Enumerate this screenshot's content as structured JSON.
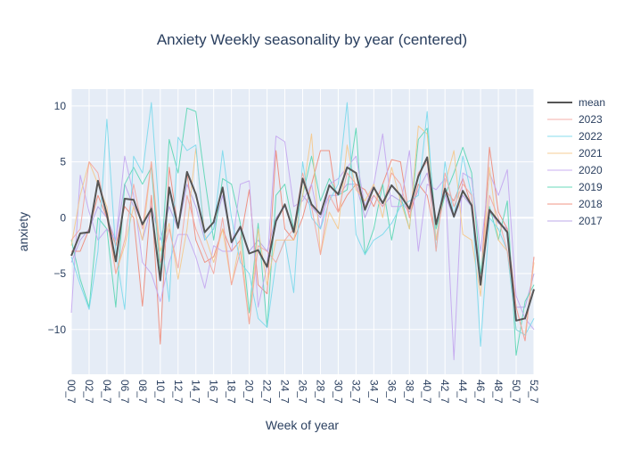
{
  "chart_data": {
    "type": "line",
    "title": "Anxiety Weekly seasonality by year (centered)",
    "xlabel": "Week of year",
    "ylabel": "anxiety",
    "x": [
      "00_7",
      "01_7",
      "02_7",
      "03_7",
      "04_7",
      "05_7",
      "06_7",
      "07_7",
      "08_7",
      "09_7",
      "10_7",
      "11_7",
      "12_7",
      "13_7",
      "14_7",
      "15_7",
      "16_7",
      "17_7",
      "18_7",
      "19_7",
      "20_7",
      "21_7",
      "22_7",
      "23_7",
      "24_7",
      "25_7",
      "26_7",
      "27_7",
      "28_7",
      "29_7",
      "30_7",
      "31_7",
      "32_7",
      "33_7",
      "34_7",
      "35_7",
      "36_7",
      "37_7",
      "38_7",
      "39_7",
      "40_7",
      "41_7",
      "42_7",
      "43_7",
      "44_7",
      "45_7",
      "46_7",
      "47_7",
      "48_7",
      "49_7",
      "50_7",
      "51_7",
      "52_7"
    ],
    "xtick_labels": [
      "00_7",
      "02_7",
      "04_7",
      "06_7",
      "08_7",
      "10_7",
      "12_7",
      "14_7",
      "16_7",
      "18_7",
      "20_7",
      "22_7",
      "24_7",
      "26_7",
      "28_7",
      "30_7",
      "32_7",
      "34_7",
      "36_7",
      "38_7",
      "40_7",
      "42_7",
      "44_7",
      "46_7",
      "48_7",
      "50_7",
      "52_7"
    ],
    "ylim": [
      -14,
      11.5
    ],
    "yticks": [
      -10,
      -5,
      0,
      5,
      10
    ],
    "grid": true,
    "legend_position": "right",
    "series": [
      {
        "name": "mean",
        "color": "#555555",
        "width": 2,
        "opacity": 1,
        "values": [
          -3.4,
          -1.4,
          -1.3,
          3.3,
          0.3,
          -3.9,
          1.7,
          1.6,
          -0.6,
          0.8,
          -5.6,
          2.7,
          -0.9,
          4.1,
          2.1,
          -1.3,
          -0.4,
          2.7,
          -2.2,
          -0.8,
          -3.2,
          -2.9,
          -4.4,
          -0.3,
          1.2,
          -1.3,
          3.5,
          1.2,
          0.3,
          2.9,
          2.1,
          4.5,
          4.0,
          0.7,
          2.7,
          1.3,
          2.9,
          2.0,
          0.8,
          3.7,
          5.4,
          -0.6,
          2.6,
          0.1,
          2.4,
          1.1,
          -6.0,
          0.7,
          -0.3,
          -1.3,
          -9.2,
          -9.0,
          -6.4
        ]
      },
      {
        "name": "2023",
        "color": "#f4a6a0",
        "width": 1,
        "opacity": 0.9,
        "values": [
          -2.0,
          -1.0,
          5.0,
          4.0,
          0.0,
          -5.0,
          -2.0,
          3.0,
          -1.0,
          5.0,
          -4.0,
          -1.0,
          -4.5,
          2.0,
          -1.0,
          -3.0,
          -5.0,
          0.0,
          -6.0,
          -3.0,
          -9.5,
          -2.5,
          -3.0,
          -4.0,
          -2.0,
          -1.0,
          4.0,
          1.0,
          -3.3,
          2.0,
          0.5,
          4.0,
          3.0,
          1.0,
          2.0,
          1.0,
          4.0,
          3.0,
          0.0,
          4.0,
          5.0,
          -3.0,
          4.0,
          1.0,
          3.0,
          2.0,
          -6.0,
          2.0,
          0.0,
          -3.0,
          -8.0,
          -11.0,
          -3.5
        ]
      },
      {
        "name": "2022",
        "color": "#7ad9ec",
        "width": 1,
        "opacity": 0.9,
        "values": [
          -3.5,
          -6.0,
          -8.2,
          -3.0,
          8.8,
          -3.0,
          -8.2,
          5.5,
          4.0,
          10.3,
          -1.0,
          -7.5,
          7.2,
          6.0,
          6.5,
          -2.0,
          -1.0,
          6.0,
          0.0,
          -4.0,
          -5.0,
          -9.0,
          -9.8,
          -4.0,
          -2.0,
          -6.7,
          5.0,
          0.0,
          -1.0,
          1.5,
          3.0,
          10.3,
          -1.5,
          -3.3,
          -2.0,
          -1.5,
          -0.5,
          1.0,
          1.5,
          2.0,
          9.5,
          -3.0,
          5.0,
          0.0,
          5.5,
          2.0,
          -11.5,
          0.0,
          -1.0,
          -3.0,
          -10.0,
          -10.5,
          -9.0
        ]
      },
      {
        "name": "2021",
        "color": "#f5c88a",
        "width": 1,
        "opacity": 0.9,
        "values": [
          -2.5,
          2.0,
          5.0,
          3.0,
          1.0,
          -5.0,
          -2.5,
          1.0,
          -2.0,
          5.0,
          -3.0,
          -0.5,
          -5.5,
          -1.0,
          6.2,
          -1.5,
          -4.0,
          -1.0,
          -6.0,
          -2.0,
          -9.5,
          -1.0,
          -6.0,
          -2.0,
          -2.0,
          -2.0,
          2.0,
          7.5,
          -3.3,
          0.5,
          -1.0,
          6.5,
          2.5,
          1.5,
          3.0,
          0.0,
          4.5,
          1.5,
          -1.0,
          8.2,
          7.5,
          -2.0,
          3.0,
          6.0,
          -1.5,
          -2.0,
          -7.0,
          4.5,
          -2.0,
          -3.0,
          -10.0,
          -10.5,
          -4.0
        ]
      },
      {
        "name": "2020",
        "color": "#c3a6ef",
        "width": 1,
        "opacity": 0.9,
        "values": [
          -8.5,
          3.8,
          0.5,
          -2.0,
          -1.0,
          -2.0,
          5.5,
          2.0,
          -4.0,
          -5.0,
          -7.5,
          -4.0,
          -1.5,
          -1.5,
          -3.5,
          -6.3,
          -2.5,
          -3.0,
          -3.0,
          3.0,
          3.3,
          -8.0,
          -4.3,
          7.3,
          6.8,
          1.0,
          1.5,
          3.0,
          -1.0,
          3.0,
          3.5,
          4.5,
          5.5,
          1.0,
          3.0,
          7.5,
          1.0,
          1.0,
          6.0,
          -3.0,
          3.0,
          2.5,
          3.5,
          -12.7,
          4.0,
          3.5,
          -3.0,
          4.0,
          2.0,
          4.3,
          -7.0,
          -9.0,
          -10.0
        ]
      },
      {
        "name": "2019",
        "color": "#5ad6b4",
        "width": 1,
        "opacity": 0.9,
        "values": [
          -2.0,
          -5.5,
          -8.0,
          0.0,
          -1.0,
          -8.0,
          3.0,
          4.5,
          3.0,
          4.5,
          -5.0,
          7.0,
          4.0,
          9.8,
          9.5,
          3.5,
          -2.0,
          3.5,
          3.0,
          -0.5,
          -8.5,
          -0.5,
          -9.8,
          2.0,
          3.0,
          -1.0,
          2.0,
          5.5,
          1.5,
          3.5,
          2.0,
          2.5,
          8.0,
          -3.3,
          -1.0,
          3.0,
          -2.0,
          2.0,
          -1.0,
          7.0,
          8.0,
          -1.0,
          2.0,
          4.0,
          6.3,
          4.0,
          -5.0,
          1.0,
          -2.0,
          1.5,
          -12.3,
          -7.5,
          -6.0
        ]
      },
      {
        "name": "2018",
        "color": "#ee8a78",
        "width": 1,
        "opacity": 0.9,
        "values": [
          -3.0,
          -3.0,
          -1.0,
          2.0,
          0.0,
          -2.5,
          1.0,
          0.0,
          -7.9,
          2.0,
          -11.3,
          4.5,
          -1.0,
          4.0,
          -2.0,
          -4.0,
          -3.5,
          -1.0,
          -3.0,
          -2.0,
          2.5,
          -6.0,
          -6.8,
          6.0,
          -1.0,
          -2.0,
          0.0,
          3.0,
          6.0,
          6.0,
          0.5,
          2.0,
          3.0,
          2.5,
          1.0,
          3.0,
          5.2,
          5.0,
          0.0,
          3.0,
          2.0,
          -2.0,
          2.5,
          1.5,
          3.5,
          1.0,
          -6.0,
          6.3,
          0.5,
          -1.0,
          -8.0,
          -11.0,
          -3.5
        ]
      },
      {
        "name": "2017",
        "color": "#b5a0e8",
        "width": 1,
        "opacity": 0.9,
        "values": [
          -4.0,
          -2.0,
          -1.0,
          1.0,
          0.0,
          -2.0,
          3.0,
          1.0,
          -2.0,
          1.0,
          -2.0,
          1.0,
          -1.0,
          3.0,
          1.0,
          -2.0,
          -1.0,
          2.0,
          -2.0,
          -1.0,
          -3.0,
          -2.0,
          -3.0,
          0.0,
          1.0,
          -1.0,
          2.0,
          1.0,
          0.0,
          2.0,
          2.0,
          3.0,
          3.0,
          0.0,
          2.0,
          1.0,
          2.0,
          1.5,
          0.5,
          2.5,
          4.0,
          -0.5,
          2.0,
          0.0,
          2.0,
          1.0,
          -5.0,
          0.5,
          -0.5,
          -1.0,
          -8.0,
          -8.0,
          -5.0
        ]
      }
    ]
  }
}
